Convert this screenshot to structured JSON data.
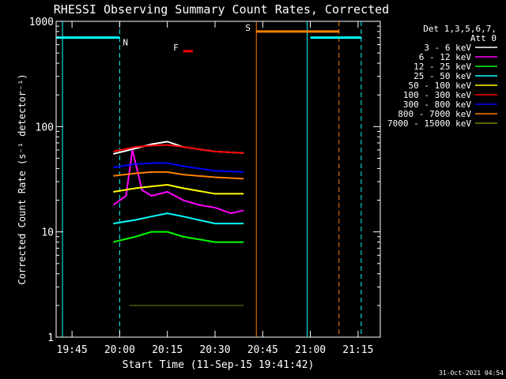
{
  "chart_data": {
    "type": "line",
    "title": "RHESSI Observing Summary Count Rates, Corrected",
    "xlabel": "Start Time (11-Sep-15 19:41:42)",
    "ylabel": "Corrected Count Rate (s⁻¹ detector⁻¹)",
    "xlim": [
      "19:40",
      "21:22"
    ],
    "ylim": [
      1,
      1000
    ],
    "yscale": "log",
    "xticks": [
      "19:45",
      "20:00",
      "20:15",
      "20:30",
      "20:45",
      "21:00",
      "21:15"
    ],
    "yticks": [
      {
        "value": 1,
        "label": "1"
      },
      {
        "value": 10,
        "label": "10"
      },
      {
        "value": 100,
        "label": "100"
      },
      {
        "value": 1000,
        "label": "1000"
      }
    ],
    "legend_title": [
      "Det 1,3,5,6,7,",
      "Att 0"
    ],
    "legend_position": "right",
    "series": [
      {
        "name": "3 - 6 keV",
        "color": "#ffffff",
        "x": [
          "19:58",
          "20:05",
          "20:10",
          "20:15",
          "20:20",
          "20:30",
          "20:39"
        ],
        "y": [
          55,
          62,
          68,
          72,
          64,
          58,
          56
        ]
      },
      {
        "name": "6 - 12 keV",
        "color": "#ff00ff",
        "x": [
          "19:58",
          "20:02",
          "20:04",
          "20:07",
          "20:10",
          "20:15",
          "20:20",
          "20:25",
          "20:30",
          "20:35",
          "20:39"
        ],
        "y": [
          18,
          22,
          60,
          25,
          22,
          24,
          20,
          18,
          17,
          15,
          16
        ]
      },
      {
        "name": "12 - 25 keV",
        "color": "#00ff00",
        "x": [
          "19:58",
          "20:05",
          "20:10",
          "20:15",
          "20:20",
          "20:30",
          "20:39"
        ],
        "y": [
          8,
          9,
          10,
          10,
          9,
          8,
          8
        ]
      },
      {
        "name": "25 - 50 keV",
        "color": "#00ffff",
        "x": [
          "19:58",
          "20:05",
          "20:10",
          "20:15",
          "20:20",
          "20:30",
          "20:39"
        ],
        "y": [
          12,
          13,
          14,
          15,
          14,
          12,
          12
        ]
      },
      {
        "name": "50 - 100 keV",
        "color": "#ffff00",
        "x": [
          "19:58",
          "20:05",
          "20:10",
          "20:15",
          "20:20",
          "20:30",
          "20:39"
        ],
        "y": [
          24,
          26,
          27,
          28,
          26,
          23,
          23
        ]
      },
      {
        "name": "100 - 300 keV",
        "color": "#ff0000",
        "x": [
          "19:58",
          "20:05",
          "20:10",
          "20:15",
          "20:20",
          "20:30",
          "20:39"
        ],
        "y": [
          58,
          64,
          66,
          67,
          64,
          58,
          56
        ]
      },
      {
        "name": "300 - 800 keV",
        "color": "#0000ff",
        "x": [
          "19:58",
          "20:05",
          "20:10",
          "20:15",
          "20:20",
          "20:30",
          "20:39"
        ],
        "y": [
          41,
          44,
          45,
          45,
          42,
          38,
          37
        ]
      },
      {
        "name": "800 - 7000 keV",
        "color": "#ff8000",
        "x": [
          "19:58",
          "20:05",
          "20:10",
          "20:15",
          "20:20",
          "20:30",
          "20:39"
        ],
        "y": [
          34,
          36,
          37,
          37,
          35,
          33,
          32
        ]
      },
      {
        "name": "7000 - 15000 keV",
        "color": "#808000",
        "x": [
          "20:03",
          "20:39"
        ],
        "y": [
          2,
          2
        ]
      }
    ],
    "spans": [
      {
        "label": "N",
        "color": "#00ffff",
        "start": "19:40",
        "end": "20:00",
        "y": 700
      },
      {
        "label": "",
        "color": "#00ffff",
        "start": "21:00",
        "end": "21:16",
        "y": 700
      },
      {
        "label": "S",
        "color": "#ff8000",
        "start": "20:43",
        "end": "21:09",
        "y": 800
      },
      {
        "label": "F",
        "color": "#ff0000",
        "start": "20:20",
        "end": "20:23",
        "y": 520
      }
    ],
    "vlines": [
      {
        "x": "19:42",
        "color": "#00ffff",
        "dashed": false
      },
      {
        "x": "20:00",
        "color": "#00ffff",
        "dashed": true
      },
      {
        "x": "20:43",
        "color": "#ff8000",
        "dashed": false
      },
      {
        "x": "20:59",
        "color": "#00ffff",
        "dashed": false
      },
      {
        "x": "21:09",
        "color": "#ff8000",
        "dashed": true
      },
      {
        "x": "21:16",
        "color": "#00ffff",
        "dashed": true
      }
    ],
    "colors": {
      "background": "#000000",
      "axis": "#ffffff"
    }
  },
  "footer": {
    "timestamp": "31-Oct-2021 04:54"
  }
}
